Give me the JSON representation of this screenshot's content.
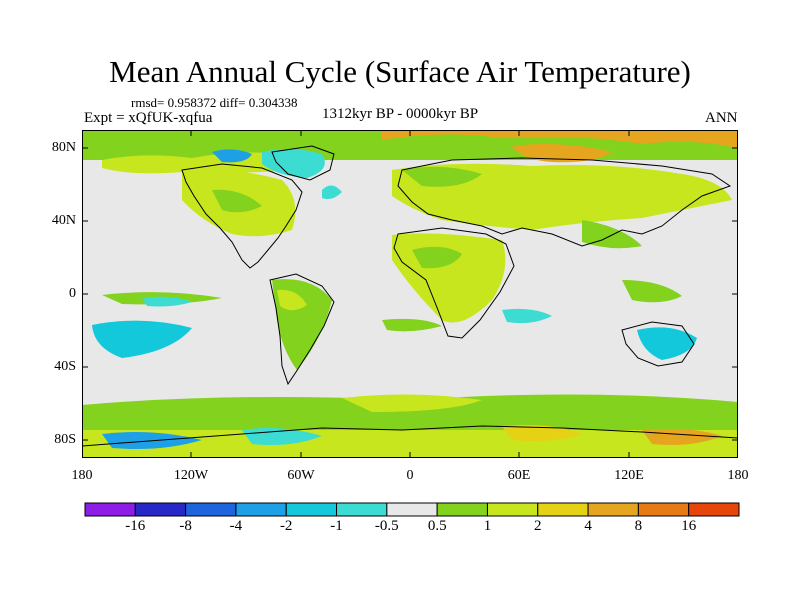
{
  "title": "Mean Annual Cycle (Surface Air Temperature)",
  "stats": "rmsd= 0.958372 diff= 0.304338",
  "experiment": "Expt = xQfUK-xqfua",
  "period": "1312kyr BP - 0000kyr BP",
  "season": "ANN",
  "map": {
    "projection": "cylindrical equidistant",
    "lon_range": [
      -180,
      180
    ],
    "lat_range": [
      -90,
      90
    ],
    "background_color": "#e8e8e8",
    "y_tick_labels": [
      "80N",
      "40N",
      "0",
      "40S",
      "80S"
    ],
    "x_tick_labels": [
      "180",
      "120W",
      "60W",
      "0",
      "60E",
      "120E",
      "180"
    ]
  },
  "colorbar": {
    "colors": [
      "#8c1ee6",
      "#2828c8",
      "#1e64dc",
      "#1ea0e6",
      "#14c8dc",
      "#3cdcd2",
      "#e8e8e8",
      "#82d21e",
      "#c8e61e",
      "#e6d214",
      "#e6a51e",
      "#e67a14",
      "#e6460a"
    ],
    "labels": [
      "-16",
      "-8",
      "-4",
      "-2",
      "-1",
      "-0.5",
      "0.5",
      "1",
      "2",
      "4",
      "8",
      "16"
    ]
  }
}
